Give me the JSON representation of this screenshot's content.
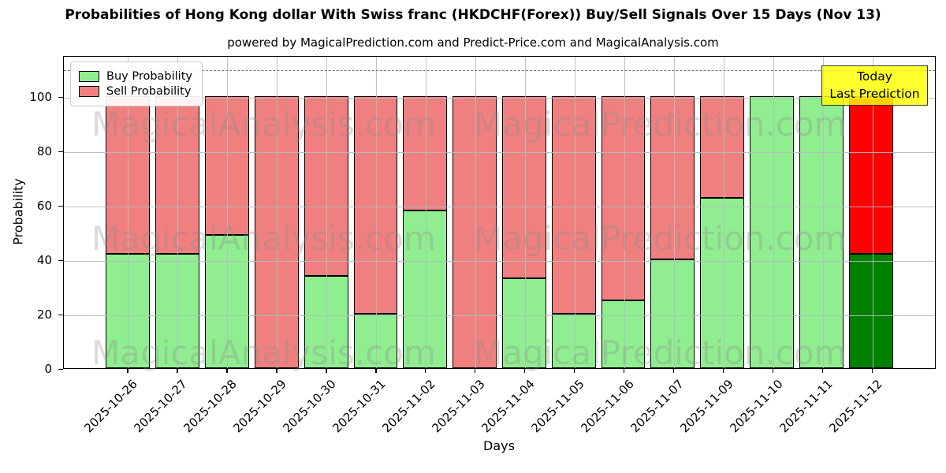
{
  "chart_data": {
    "type": "bar",
    "stacked": true,
    "title": "Probabilities of Hong Kong dollar With Swiss franc (HKDCHF(Forex)) Buy/Sell Signals Over 15 Days (Nov 13)",
    "subtitle": "powered by MagicalPrediction.com and Predict-Price.com and MagicalAnalysis.com",
    "xlabel": "Days",
    "ylabel": "Probability",
    "categories": [
      "2025-10-26",
      "2025-10-27",
      "2025-10-28",
      "2025-10-29",
      "2025-10-30",
      "2025-10-31",
      "2025-11-02",
      "2025-11-03",
      "2025-11-04",
      "2025-11-05",
      "2025-11-06",
      "2025-11-07",
      "2025-11-09",
      "2025-11-10",
      "2025-11-11",
      "2025-11-12"
    ],
    "series": [
      {
        "name": "Buy Probability",
        "color": "#90EE90",
        "values": [
          42,
          42,
          49,
          0,
          34,
          20,
          58,
          0,
          33,
          20,
          25,
          40,
          62.5,
          100,
          100,
          42
        ]
      },
      {
        "name": "Sell Probability",
        "color": "#F08080",
        "values": [
          58,
          58,
          51,
          100,
          66,
          80,
          42,
          100,
          67,
          80,
          75,
          60,
          37.5,
          0,
          0,
          58
        ]
      }
    ],
    "today_bar": {
      "index": 15,
      "buy_color": "#008000",
      "sell_color": "#FF0000"
    },
    "yticks": [
      0,
      20,
      40,
      60,
      80,
      100
    ],
    "ylim": [
      0,
      115
    ],
    "dashed_line_y": 110,
    "grid": true,
    "legend_position": "upper left",
    "bar_edge_color": "#000000"
  },
  "annotation_box": {
    "line1": "Today",
    "line2": "Last Prediction",
    "bg_color": "#FFFF00"
  },
  "watermarks": {
    "left_text": "MagicalAnalysis.com",
    "right_text": "MagicalPrediction.com"
  }
}
